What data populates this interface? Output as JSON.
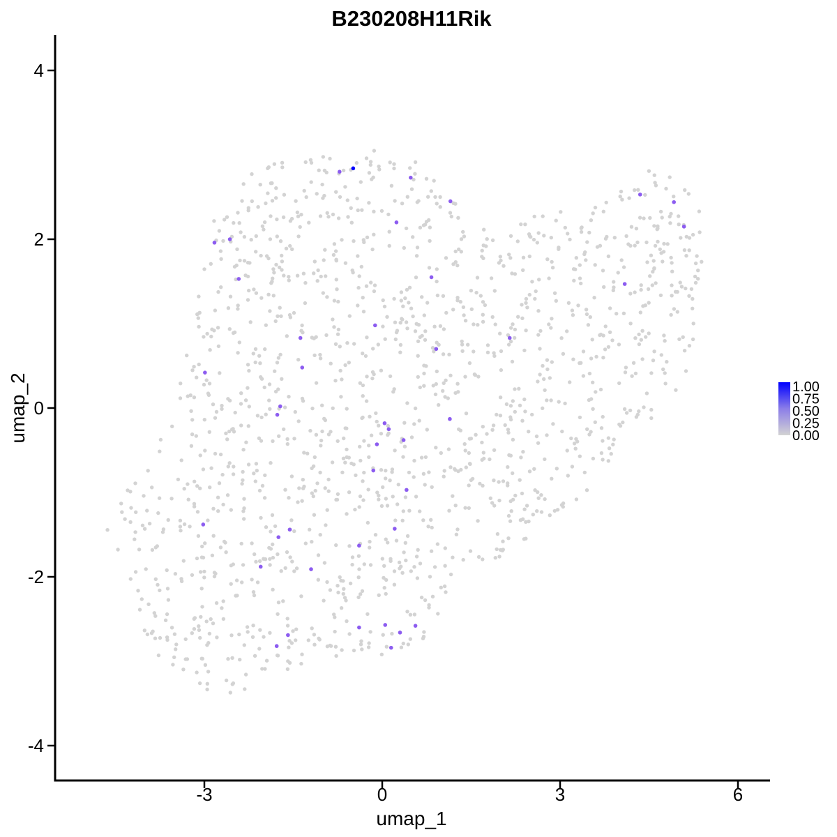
{
  "chart_data": {
    "type": "scatter",
    "title": "B230208H11Rik",
    "xlabel": "umap_1",
    "ylabel": "umap_2",
    "xlim": [
      -5.4,
      6.6
    ],
    "ylim": [
      -4.35,
      4.4
    ],
    "x_ticks": [
      -3,
      0,
      3,
      6
    ],
    "y_ticks": [
      -4,
      -2,
      0,
      2,
      4
    ],
    "x_tick_labels": [
      "-3",
      "0",
      "3",
      "6"
    ],
    "y_tick_labels": [
      "-4",
      "-2",
      "0",
      "2",
      "4"
    ],
    "grid": false,
    "colors": {
      "low": "#d3d3d3",
      "mid": "#8c5cf0",
      "high": "#0000ff"
    },
    "legend": {
      "position": "right",
      "type": "colorbar",
      "labels": [
        "1.00",
        "0.75",
        "0.50",
        "0.25",
        "0.00"
      ],
      "values": [
        1.0,
        0.75,
        0.5,
        0.25,
        0.0
      ]
    },
    "expressing_cells": [
      {
        "x": -0.49,
        "y": 2.84,
        "value": 1.0
      },
      {
        "x": -0.72,
        "y": 2.8,
        "value": 0.5
      },
      {
        "x": 0.48,
        "y": 2.73,
        "value": 0.5
      },
      {
        "x": 1.15,
        "y": 2.45,
        "value": 0.5
      },
      {
        "x": 0.24,
        "y": 2.2,
        "value": 0.5
      },
      {
        "x": -2.83,
        "y": 1.96,
        "value": 0.5
      },
      {
        "x": -2.57,
        "y": 2.0,
        "value": 0.5
      },
      {
        "x": -2.42,
        "y": 1.53,
        "value": 0.5
      },
      {
        "x": 0.83,
        "y": 1.55,
        "value": 0.5
      },
      {
        "x": -0.12,
        "y": 0.98,
        "value": 0.5
      },
      {
        "x": -1.38,
        "y": 0.83,
        "value": 0.5
      },
      {
        "x": 0.91,
        "y": 0.7,
        "value": 0.5
      },
      {
        "x": 2.15,
        "y": 0.83,
        "value": 0.5
      },
      {
        "x": -2.99,
        "y": 0.42,
        "value": 0.5
      },
      {
        "x": -1.35,
        "y": 0.48,
        "value": 0.5
      },
      {
        "x": -1.72,
        "y": 0.02,
        "value": 0.5
      },
      {
        "x": -1.77,
        "y": -0.08,
        "value": 0.5
      },
      {
        "x": 0.04,
        "y": -0.18,
        "value": 0.5
      },
      {
        "x": 0.11,
        "y": -0.25,
        "value": 0.5
      },
      {
        "x": 1.14,
        "y": -0.13,
        "value": 0.5
      },
      {
        "x": -0.09,
        "y": -0.43,
        "value": 0.5
      },
      {
        "x": 0.36,
        "y": -0.38,
        "value": 0.5
      },
      {
        "x": -0.15,
        "y": -0.74,
        "value": 0.5
      },
      {
        "x": 0.41,
        "y": -0.97,
        "value": 0.5
      },
      {
        "x": -3.02,
        "y": -1.38,
        "value": 0.5
      },
      {
        "x": -1.56,
        "y": -1.44,
        "value": 0.5
      },
      {
        "x": -1.75,
        "y": -1.53,
        "value": 0.5
      },
      {
        "x": 0.21,
        "y": -1.43,
        "value": 0.5
      },
      {
        "x": -0.39,
        "y": -1.63,
        "value": 0.5
      },
      {
        "x": -2.05,
        "y": -1.88,
        "value": 0.5
      },
      {
        "x": -1.2,
        "y": -1.91,
        "value": 0.5
      },
      {
        "x": -0.39,
        "y": -2.6,
        "value": 0.5
      },
      {
        "x": 0.05,
        "y": -2.57,
        "value": 0.5
      },
      {
        "x": 0.3,
        "y": -2.66,
        "value": 0.5
      },
      {
        "x": 0.56,
        "y": -2.58,
        "value": 0.5
      },
      {
        "x": 0.15,
        "y": -2.84,
        "value": 0.5
      },
      {
        "x": -1.59,
        "y": -2.69,
        "value": 0.5
      },
      {
        "x": -1.78,
        "y": -2.82,
        "value": 0.5
      },
      {
        "x": 4.35,
        "y": 2.53,
        "value": 0.5
      },
      {
        "x": 4.92,
        "y": 2.44,
        "value": 0.5
      },
      {
        "x": 5.09,
        "y": 2.15,
        "value": 0.5
      },
      {
        "x": 4.09,
        "y": 1.47,
        "value": 0.5
      }
    ]
  }
}
